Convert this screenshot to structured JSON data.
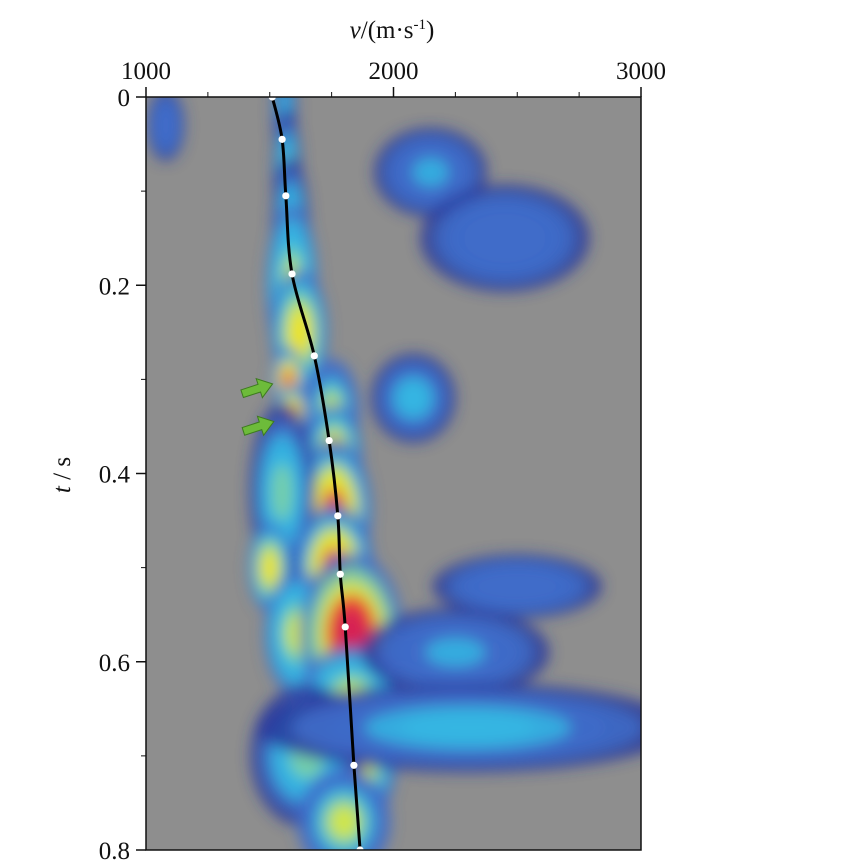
{
  "chart_data": {
    "type": "heatmap",
    "title": "",
    "xlabel": {
      "var": "v",
      "rest": "/(m·s",
      "sup": "-1",
      "close": ")"
    },
    "ylabel": {
      "var": "t",
      "rest": " / s"
    },
    "xlim": [
      1000,
      3000
    ],
    "ylim": [
      0,
      0.8
    ],
    "x_ticks": [
      1000,
      2000,
      3000
    ],
    "x_tick_labels": [
      "1000",
      "2000",
      "3000"
    ],
    "y_ticks": [
      0,
      0.2,
      0.4,
      0.6,
      0.8
    ],
    "y_tick_labels": [
      "0",
      "0.2",
      "0.4",
      "0.6",
      "0.8"
    ],
    "x_ticks_position": "top",
    "background_color": "#8e8e8e",
    "colormap": [
      "#2a3a9c",
      "#3f6cc9",
      "#35b7e3",
      "#7fd3a0",
      "#dfe93c",
      "#f3e21c",
      "#ef2f2a",
      "#d41a58"
    ],
    "semblance_blobs": [
      {
        "v": 1560,
        "t": 0.015,
        "dv": 25,
        "dt": 0.03,
        "level": 0.3
      },
      {
        "v": 1570,
        "t": 0.08,
        "dv": 30,
        "dt": 0.035,
        "level": 0.38
      },
      {
        "v": 1585,
        "t": 0.14,
        "dv": 40,
        "dt": 0.04,
        "level": 0.45
      },
      {
        "v": 1590,
        "t": 0.2,
        "dv": 55,
        "dt": 0.045,
        "level": 0.6
      },
      {
        "v": 1620,
        "t": 0.25,
        "dv": 60,
        "dt": 0.035,
        "level": 0.65
      },
      {
        "v": 1575,
        "t": 0.3,
        "dv": 35,
        "dt": 0.018,
        "level": 0.92
      },
      {
        "v": 1590,
        "t": 0.335,
        "dv": 40,
        "dt": 0.015,
        "level": 0.9
      },
      {
        "v": 1750,
        "t": 0.335,
        "dv": 60,
        "dt": 0.03,
        "level": 0.55
      },
      {
        "v": 1760,
        "t": 0.38,
        "dv": 60,
        "dt": 0.028,
        "level": 0.85
      },
      {
        "v": 1760,
        "t": 0.44,
        "dv": 80,
        "dt": 0.04,
        "level": 0.97
      },
      {
        "v": 1550,
        "t": 0.42,
        "dv": 70,
        "dt": 0.05,
        "level": 0.45
      },
      {
        "v": 1500,
        "t": 0.5,
        "dv": 45,
        "dt": 0.025,
        "level": 0.7
      },
      {
        "v": 1760,
        "t": 0.5,
        "dv": 85,
        "dt": 0.035,
        "level": 0.97
      },
      {
        "v": 1610,
        "t": 0.57,
        "dv": 70,
        "dt": 0.035,
        "level": 0.6
      },
      {
        "v": 1830,
        "t": 0.57,
        "dv": 110,
        "dt": 0.045,
        "level": 1.0
      },
      {
        "v": 1830,
        "t": 0.64,
        "dv": 110,
        "dt": 0.03,
        "level": 0.6
      },
      {
        "v": 1840,
        "t": 0.71,
        "dv": 90,
        "dt": 0.035,
        "level": 0.78
      },
      {
        "v": 1650,
        "t": 0.7,
        "dv": 120,
        "dt": 0.04,
        "level": 0.4
      },
      {
        "v": 1800,
        "t": 0.77,
        "dv": 100,
        "dt": 0.03,
        "level": 0.5
      },
      {
        "v": 2080,
        "t": 0.32,
        "dv": 90,
        "dt": 0.025,
        "level": 0.28
      },
      {
        "v": 2250,
        "t": 0.59,
        "dv": 200,
        "dt": 0.025,
        "level": 0.25
      },
      {
        "v": 2300,
        "t": 0.67,
        "dv": 450,
        "dt": 0.025,
        "level": 0.3
      },
      {
        "v": 2150,
        "t": 0.08,
        "dv": 120,
        "dt": 0.025,
        "level": 0.22
      },
      {
        "v": 2450,
        "t": 0.15,
        "dv": 180,
        "dt": 0.03,
        "level": 0.2
      },
      {
        "v": 2500,
        "t": 0.52,
        "dv": 180,
        "dt": 0.018,
        "level": 0.2
      },
      {
        "v": 1080,
        "t": 0.03,
        "dv": 40,
        "dt": 0.02,
        "level": 0.2
      }
    ],
    "velocity_picks": [
      {
        "t": 0.0,
        "v": 1510
      },
      {
        "t": 0.045,
        "v": 1550
      },
      {
        "t": 0.105,
        "v": 1565
      },
      {
        "t": 0.188,
        "v": 1590
      },
      {
        "t": 0.275,
        "v": 1680
      },
      {
        "t": 0.365,
        "v": 1740
      },
      {
        "t": 0.445,
        "v": 1775
      },
      {
        "t": 0.507,
        "v": 1785
      },
      {
        "t": 0.563,
        "v": 1805
      },
      {
        "t": 0.71,
        "v": 1840
      },
      {
        "t": 0.8,
        "v": 1865
      }
    ],
    "velocity_curve_color": "#000000",
    "pick_marker_color": "#ffffff",
    "annotations": [
      {
        "type": "arrow",
        "t": 0.31,
        "v": 1450,
        "color": "#6dbb3a"
      },
      {
        "type": "arrow",
        "t": 0.35,
        "v": 1455,
        "color": "#6dbb3a"
      }
    ]
  }
}
